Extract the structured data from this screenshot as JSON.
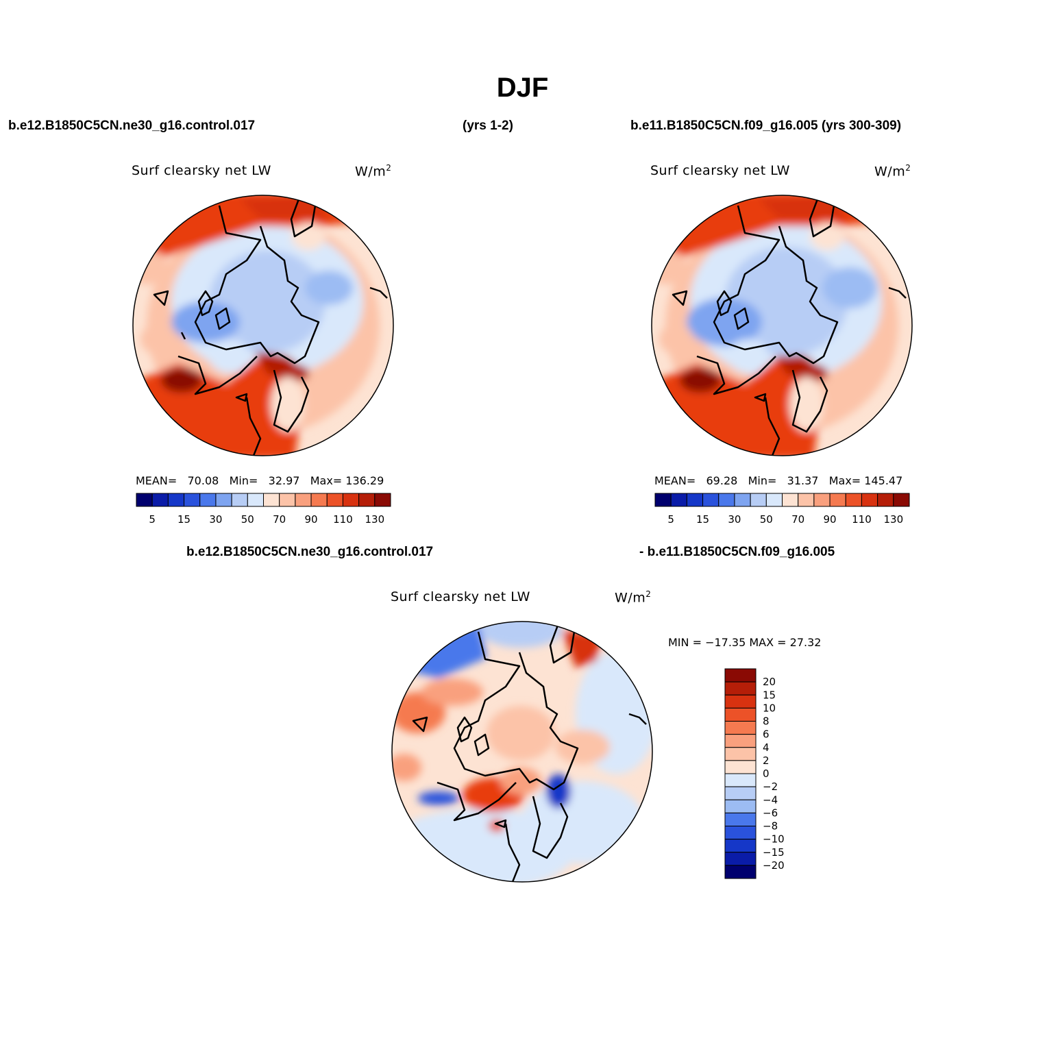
{
  "figure_title": "DJF",
  "header": {
    "case1": "b.e12.B1850C5CN.ne30_g16.control.017",
    "case1_years": "(yrs 1-2)",
    "case2": "b.e11.B1850C5CN.f09_g16.005 (yrs 300-309)",
    "diff_left": "b.e12.B1850C5CN.ne30_g16.control.017",
    "diff_right": "- b.e11.B1850C5CN.f09_g16.005"
  },
  "colors": {
    "ocean_warm": "#e83c10",
    "ocean_hot": "#b31a05",
    "sea_ice": "#b7cdf5",
    "land_blue": "#7ea4f0",
    "pale": "#fde3d3",
    "light_orange": "#f9a07e"
  },
  "chart_data": [
    {
      "type": "heatmap",
      "panel": "case1",
      "title": "Surf clearsky net LW",
      "units": "W/m",
      "units_exp": "2",
      "stats": {
        "mean_label": "MEAN=",
        "mean": "70.08",
        "min_label": "Min=",
        "min": "32.97",
        "max_label": "Max=",
        "max": "136.29"
      },
      "levels": [
        5,
        10,
        15,
        20,
        30,
        40,
        50,
        60,
        70,
        80,
        90,
        100,
        110,
        120,
        130
      ],
      "tick_labels": [
        "5",
        "15",
        "30",
        "50",
        "70",
        "90",
        "110",
        "130"
      ],
      "colors": [
        "#00006e",
        "#0a1ca8",
        "#1537c8",
        "#2a52dc",
        "#4a78eb",
        "#7ea4f0",
        "#b7cdf5",
        "#d9e8fb",
        "#fde3d3",
        "#fcc3a8",
        "#f9a07e",
        "#f57a50",
        "#ec5228",
        "#d83210",
        "#b51e08",
        "#8a0a04"
      ]
    },
    {
      "type": "heatmap",
      "panel": "case2",
      "title": "Surf clearsky net LW",
      "units": "W/m",
      "units_exp": "2",
      "stats": {
        "mean_label": "MEAN=",
        "mean": "69.28",
        "min_label": "Min=",
        "min": "31.37",
        "max_label": "Max=",
        "max": "145.47"
      },
      "levels": [
        5,
        10,
        15,
        20,
        30,
        40,
        50,
        60,
        70,
        80,
        90,
        100,
        110,
        120,
        130
      ],
      "tick_labels": [
        "5",
        "15",
        "30",
        "50",
        "70",
        "90",
        "110",
        "130"
      ],
      "colors": [
        "#00006e",
        "#0a1ca8",
        "#1537c8",
        "#2a52dc",
        "#4a78eb",
        "#7ea4f0",
        "#b7cdf5",
        "#d9e8fb",
        "#fde3d3",
        "#fcc3a8",
        "#f9a07e",
        "#f57a50",
        "#ec5228",
        "#d83210",
        "#b51e08",
        "#8a0a04"
      ]
    },
    {
      "type": "heatmap",
      "panel": "difference",
      "title": "Surf clearsky net LW",
      "units": "W/m",
      "units_exp": "2",
      "minmax_text": "MIN = −17.35 MAX =   27.32",
      "levels": [
        20,
        15,
        10,
        8,
        6,
        4,
        2,
        0,
        -2,
        -4,
        -6,
        -8,
        -10,
        -15,
        -20
      ],
      "tick_labels": [
        "20",
        "15",
        "10",
        "8",
        "6",
        "4",
        "2",
        "0",
        "−2",
        "−4",
        "−6",
        "−8",
        "−10",
        "−15",
        "−20"
      ],
      "colors": [
        "#8a0a04",
        "#b51e08",
        "#d83210",
        "#ec5228",
        "#f57a50",
        "#f9a07e",
        "#fcc3a8",
        "#fde3d3",
        "#d9e8fb",
        "#b7cdf5",
        "#9cbcf3",
        "#4a78eb",
        "#2a52dc",
        "#1537c8",
        "#0a1ca8",
        "#00006e"
      ]
    }
  ]
}
